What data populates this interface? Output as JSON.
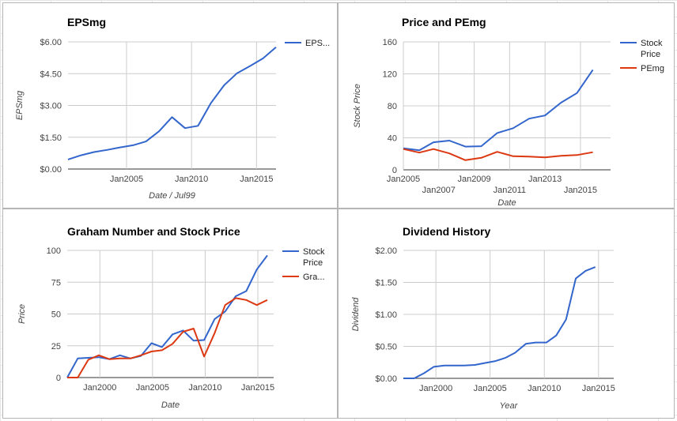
{
  "chart_data": [
    {
      "type": "line",
      "title": "EPSmg",
      "xlabel": "Date / Jul99",
      "ylabel": "EPSmg",
      "x_axis": "date",
      "xlim": [
        2000.5,
        2016.5
      ],
      "ylim": [
        0,
        6
      ],
      "grid": true,
      "legend_position": "right",
      "x_ticks": [
        {
          "value": 2005,
          "label": "Jan2005"
        },
        {
          "value": 2010,
          "label": "Jan2010"
        },
        {
          "value": 2015,
          "label": "Jan2015"
        }
      ],
      "y_ticks": [
        {
          "value": 0,
          "label": "$0.00"
        },
        {
          "value": 1.5,
          "label": "$1.50"
        },
        {
          "value": 3,
          "label": "$3.00"
        },
        {
          "value": 4.5,
          "label": "$4.50"
        },
        {
          "value": 6,
          "label": "$6.00"
        }
      ],
      "series": [
        {
          "name": "EPS...",
          "color": "#3366cc",
          "points": [
            [
              2000.5,
              0.45
            ],
            [
              2001.5,
              0.65
            ],
            [
              2002.5,
              0.8
            ],
            [
              2003.5,
              0.9
            ],
            [
              2004.5,
              1.02
            ],
            [
              2005.5,
              1.12
            ],
            [
              2006.5,
              1.3
            ],
            [
              2007.5,
              1.78
            ],
            [
              2008.5,
              2.45
            ],
            [
              2009.5,
              1.93
            ],
            [
              2010.5,
              2.04
            ],
            [
              2011.5,
              3.12
            ],
            [
              2012.5,
              3.95
            ],
            [
              2013.5,
              4.52
            ],
            [
              2014.5,
              4.86
            ],
            [
              2015.5,
              5.22
            ],
            [
              2016.5,
              5.75
            ]
          ]
        }
      ]
    },
    {
      "type": "line",
      "title": "Price and PEmg",
      "xlabel": "Date",
      "ylabel": "Stock Price",
      "x_axis": "date",
      "xlim": [
        2005,
        2016.7
      ],
      "ylim": [
        0,
        160
      ],
      "grid": true,
      "legend_position": "right",
      "x_ticks": [
        {
          "value": 2005,
          "label": "Jan2005"
        },
        {
          "value": 2007,
          "label": "Jan2007"
        },
        {
          "value": 2009,
          "label": "Jan2009"
        },
        {
          "value": 2011,
          "label": "Jan2011"
        },
        {
          "value": 2013,
          "label": "Jan2013"
        },
        {
          "value": 2015,
          "label": "Jan2015"
        }
      ],
      "y_ticks": [
        {
          "value": 0,
          "label": "0"
        },
        {
          "value": 40,
          "label": "40"
        },
        {
          "value": 80,
          "label": "80"
        },
        {
          "value": 120,
          "label": "120"
        },
        {
          "value": 160,
          "label": "160"
        }
      ],
      "series": [
        {
          "name": "Stock Price",
          "color": "#3366cc",
          "points": [
            [
              2005,
              27
            ],
            [
              2005.9,
              24.5
            ],
            [
              2006.7,
              34.5
            ],
            [
              2007.6,
              36.5
            ],
            [
              2008.5,
              29
            ],
            [
              2009.4,
              29.5
            ],
            [
              2010.3,
              46
            ],
            [
              2011.2,
              52
            ],
            [
              2012.1,
              64
            ],
            [
              2013,
              68
            ],
            [
              2013.9,
              84
            ],
            [
              2014.8,
              96
            ],
            [
              2015.7,
              125
            ]
          ]
        },
        {
          "name": "PEmg",
          "color": "#dc3912",
          "points": [
            [
              2005,
              26
            ],
            [
              2005.9,
              21.5
            ],
            [
              2006.7,
              26
            ],
            [
              2007.6,
              20.5
            ],
            [
              2008.5,
              12
            ],
            [
              2009.4,
              15
            ],
            [
              2010.3,
              22.5
            ],
            [
              2011.2,
              17
            ],
            [
              2012.1,
              16.5
            ],
            [
              2013,
              15.5
            ],
            [
              2013.9,
              17.5
            ],
            [
              2014.8,
              18.5
            ],
            [
              2015.7,
              22
            ]
          ]
        }
      ]
    },
    {
      "type": "line",
      "title": "Graham Number and Stock Price",
      "xlabel": "Date",
      "ylabel": "Price",
      "x_axis": "date",
      "xlim": [
        1996.9,
        2016.5
      ],
      "ylim": [
        0,
        100
      ],
      "grid": true,
      "legend_position": "right",
      "x_ticks": [
        {
          "value": 2000,
          "label": "Jan2000"
        },
        {
          "value": 2005,
          "label": "Jan2005"
        },
        {
          "value": 2010,
          "label": "Jan2010"
        },
        {
          "value": 2015,
          "label": "Jan2015"
        }
      ],
      "y_ticks": [
        {
          "value": 0,
          "label": "0"
        },
        {
          "value": 25,
          "label": "25"
        },
        {
          "value": 50,
          "label": "50"
        },
        {
          "value": 75,
          "label": "75"
        },
        {
          "value": 100,
          "label": "100"
        }
      ],
      "series": [
        {
          "name": "Stock Price",
          "color": "#3366cc",
          "points": [
            [
              1996.9,
              0
            ],
            [
              1997.9,
              15
            ],
            [
              1998.9,
              15.5
            ],
            [
              1999.9,
              16
            ],
            [
              2000.9,
              14.5
            ],
            [
              2001.9,
              17.5
            ],
            [
              2002.9,
              15
            ],
            [
              2003.9,
              17
            ],
            [
              2004.9,
              27
            ],
            [
              2005.9,
              24
            ],
            [
              2006.9,
              34
            ],
            [
              2007.9,
              37
            ],
            [
              2008.9,
              29
            ],
            [
              2009.9,
              29.5
            ],
            [
              2010.9,
              46
            ],
            [
              2011.9,
              52
            ],
            [
              2012.9,
              64
            ],
            [
              2013.9,
              68
            ],
            [
              2014.9,
              85
            ],
            [
              2015.9,
              96
            ]
          ]
        },
        {
          "name": "Gra...",
          "color": "#dc3912",
          "points": [
            [
              1996.9,
              0
            ],
            [
              1997.9,
              0
            ],
            [
              1998.9,
              14
            ],
            [
              1999.9,
              17.5
            ],
            [
              2000.9,
              14.5
            ],
            [
              2001.9,
              15
            ],
            [
              2002.9,
              15
            ],
            [
              2003.9,
              17.5
            ],
            [
              2004.9,
              20.5
            ],
            [
              2005.9,
              21.5
            ],
            [
              2006.9,
              26.5
            ],
            [
              2007.9,
              36
            ],
            [
              2008.9,
              38.5
            ],
            [
              2009.9,
              16.5
            ],
            [
              2010.9,
              35
            ],
            [
              2011.9,
              57
            ],
            [
              2012.9,
              62.5
            ],
            [
              2013.9,
              61
            ],
            [
              2014.9,
              57
            ],
            [
              2015.9,
              61
            ]
          ]
        }
      ]
    },
    {
      "type": "line",
      "title": "Dividend History",
      "xlabel": "Year",
      "ylabel": "Dividend",
      "x_axis": "date",
      "xlim": [
        1997,
        2016.4
      ],
      "ylim": [
        0,
        2
      ],
      "grid": true,
      "legend_position": "none",
      "x_ticks": [
        {
          "value": 2000,
          "label": "Jan2000"
        },
        {
          "value": 2005,
          "label": "Jan2005"
        },
        {
          "value": 2010,
          "label": "Jan2010"
        },
        {
          "value": 2015,
          "label": "Jan2015"
        }
      ],
      "y_ticks": [
        {
          "value": 0,
          "label": "$0.00"
        },
        {
          "value": 0.5,
          "label": "$0.50"
        },
        {
          "value": 1,
          "label": "$1.00"
        },
        {
          "value": 1.5,
          "label": "$1.50"
        },
        {
          "value": 2,
          "label": "$2.00"
        }
      ],
      "series": [
        {
          "name": "",
          "color": "#3366cc",
          "points": [
            [
              1997,
              0
            ],
            [
              1998,
              0
            ],
            [
              1998.9,
              0.08
            ],
            [
              1999.8,
              0.18
            ],
            [
              2000.8,
              0.2
            ],
            [
              2001.7,
              0.2
            ],
            [
              2002.6,
              0.2
            ],
            [
              2003.6,
              0.21
            ],
            [
              2004.5,
              0.24
            ],
            [
              2005.5,
              0.27
            ],
            [
              2006.4,
              0.32
            ],
            [
              2007.3,
              0.4
            ],
            [
              2008.3,
              0.54
            ],
            [
              2009.2,
              0.56
            ],
            [
              2010.2,
              0.56
            ],
            [
              2011.1,
              0.67
            ],
            [
              2012,
              0.92
            ],
            [
              2012.9,
              1.56
            ],
            [
              2013.8,
              1.68
            ],
            [
              2014.7,
              1.74
            ]
          ]
        }
      ]
    }
  ]
}
